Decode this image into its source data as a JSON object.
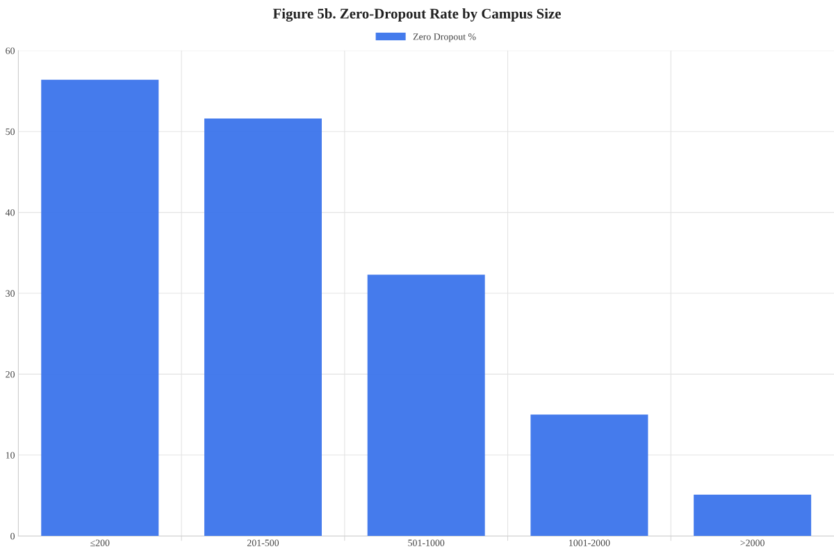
{
  "chart_data": {
    "type": "bar",
    "title": "Figure 5b. Zero-Dropout Rate by Campus Size",
    "categories": [
      "≤200",
      "201-500",
      "501-1000",
      "1001-2000",
      ">2000"
    ],
    "series": [
      {
        "name": "Zero Dropout %",
        "color": "#3b74eb",
        "values": [
          56.4,
          51.6,
          32.3,
          15.0,
          5.1
        ]
      }
    ],
    "ylim": [
      0,
      60
    ],
    "yticks": [
      0,
      10,
      20,
      30,
      40,
      50,
      60
    ],
    "grid": true,
    "legend": "top"
  }
}
